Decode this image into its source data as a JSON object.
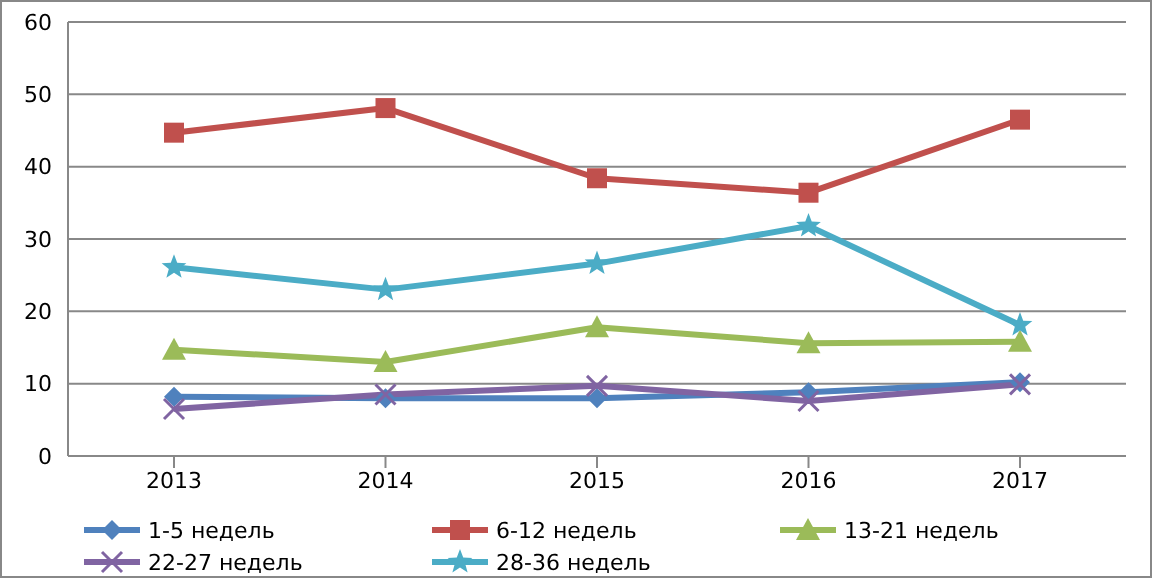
{
  "chart_data": {
    "type": "line",
    "categories": [
      "2013",
      "2014",
      "2015",
      "2016",
      "2017"
    ],
    "series": [
      {
        "name": "1-5 недель",
        "color": "#4f81bd",
        "marker": "diamond",
        "values": [
          8.2,
          8.0,
          8.0,
          8.8,
          10.2
        ]
      },
      {
        "name": "6-12 недель",
        "color": "#c0504d",
        "marker": "square",
        "values": [
          44.7,
          48.1,
          38.4,
          36.4,
          46.5
        ]
      },
      {
        "name": "13-21 недель",
        "color": "#9bbb59",
        "marker": "triangle",
        "values": [
          14.7,
          13.0,
          17.8,
          15.6,
          15.8
        ]
      },
      {
        "name": "22-27 недель",
        "color": "#8064a2",
        "marker": "cross",
        "values": [
          6.5,
          8.5,
          9.7,
          7.6,
          9.9
        ]
      },
      {
        "name": "28-36 недель",
        "color": "#4bacc6",
        "marker": "star",
        "values": [
          26.1,
          23.0,
          26.6,
          31.8,
          18.1
        ]
      }
    ],
    "ylim": [
      0,
      60
    ],
    "yticks": [
      0,
      10,
      20,
      30,
      40,
      50,
      60
    ],
    "grid": "y",
    "legend": "bottom",
    "line_style": "solid"
  }
}
